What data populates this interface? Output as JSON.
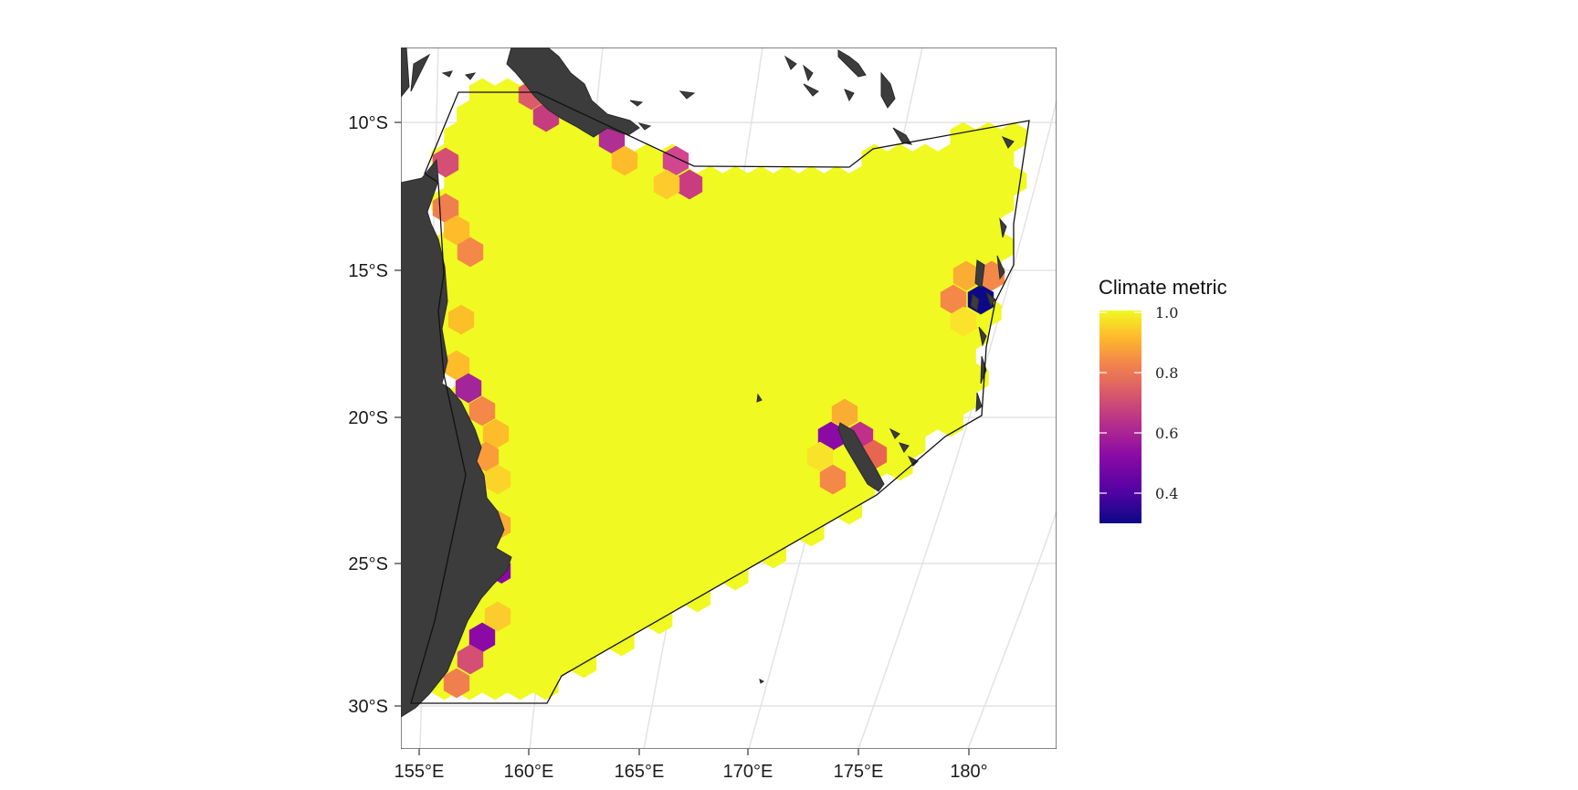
{
  "map": {
    "lat_ticks": [
      "10°S",
      "15°S",
      "20°S",
      "25°S",
      "30°S"
    ],
    "lon_ticks": [
      "155°E",
      "160°E",
      "165°E",
      "170°E",
      "175°E",
      "180°"
    ],
    "fill_color": "#f0f921",
    "land_color": "#3c3c3c",
    "graticule_color": "#e3e3e3"
  },
  "legend": {
    "title": "Climate metric",
    "labels": [
      "1.0",
      "0.8",
      "0.6",
      "0.4"
    ],
    "colormap": "plasma",
    "range": [
      0.28,
      1.0
    ]
  }
}
